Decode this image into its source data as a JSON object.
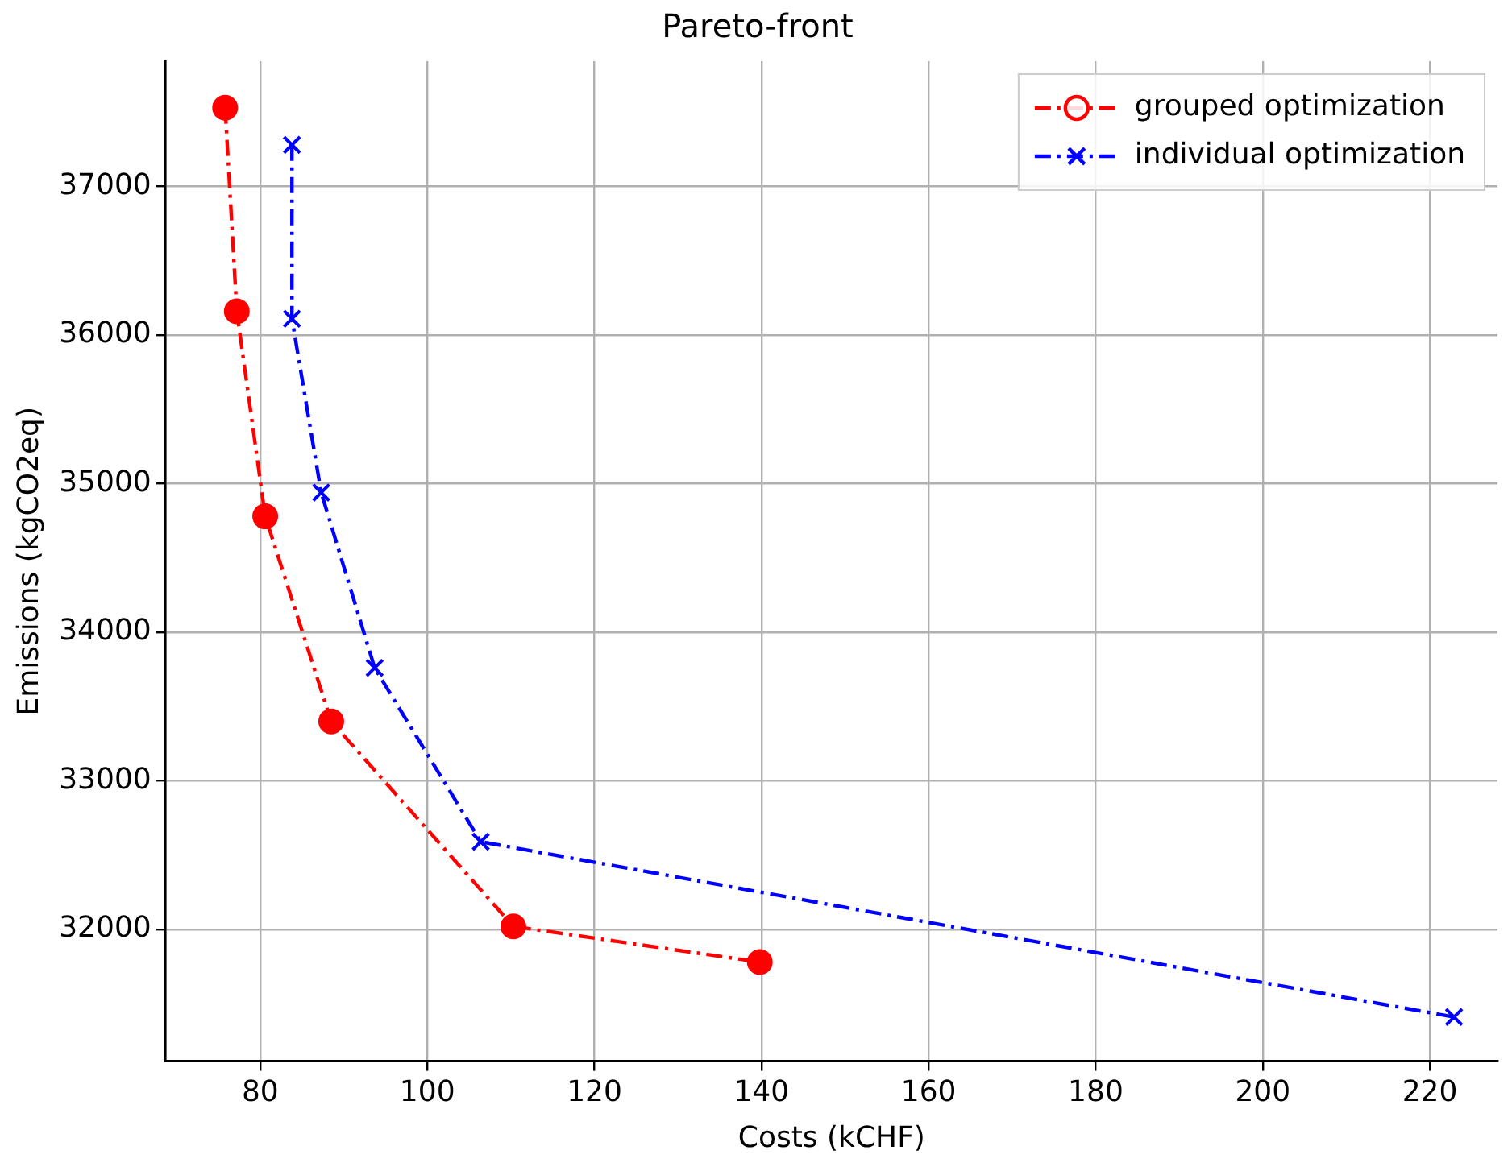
{
  "chart_data": {
    "type": "line",
    "title": "Pareto-front",
    "xlabel": "Costs (kCHF)",
    "ylabel": "Emissions (kgCO2eq)",
    "xlim": [
      68.7,
      228.1
    ],
    "xticks": [
      80,
      100,
      120,
      140,
      160,
      180,
      200,
      220
    ],
    "ylim": [
      31113,
      37843
    ],
    "yticks": [
      32000,
      33000,
      34000,
      35000,
      36000,
      37000
    ],
    "grid": true,
    "legend": "top right",
    "line_style": "dashed",
    "series": [
      {
        "name": "grouped optimization",
        "color": "#ff0000",
        "marker": "circle",
        "x": [
          75.8,
          77.2,
          80.6,
          88.5,
          110.3,
          139.8
        ],
        "values": [
          37530,
          36160,
          34780,
          33400,
          32020,
          31780
        ]
      },
      {
        "name": "individual optimization",
        "color": "#0000ff",
        "marker": "cross",
        "x": [
          83.8,
          83.8,
          87.3,
          93.7,
          106.4,
          222.9
        ],
        "values": [
          37280,
          36110,
          34940,
          33760,
          32590,
          31410
        ]
      }
    ]
  }
}
